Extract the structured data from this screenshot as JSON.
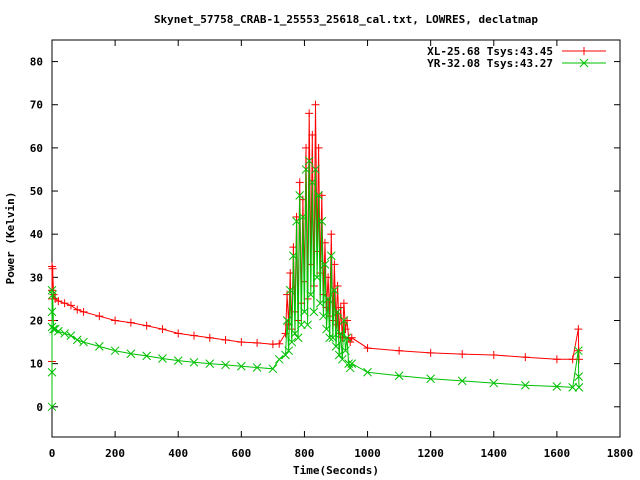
{
  "chart_data": {
    "type": "line",
    "title": "Skynet_57758_CRAB-1_25553_25618_cal.txt, LOWRES, declatmap",
    "xlabel": "Time(Seconds)",
    "ylabel": "Power (Kelvin)",
    "xlim": [
      0,
      1800
    ],
    "ylim": [
      -7,
      85
    ],
    "x_ticks": [
      "0",
      "200",
      "400",
      "600",
      "800",
      "1000",
      "1200",
      "1400",
      "1600",
      "1800"
    ],
    "y_ticks": [
      "0",
      "10",
      "20",
      "30",
      "40",
      "50",
      "60",
      "70",
      "80"
    ],
    "grid": false,
    "legend_position": "top-right",
    "series": [
      {
        "name": "XL-25.68 Tsys:43.45",
        "color": "#ff0000",
        "marker": "plus",
        "x": [
          0,
          0,
          0,
          0,
          0,
          2,
          5,
          10,
          20,
          40,
          60,
          80,
          100,
          150,
          200,
          250,
          300,
          350,
          400,
          450,
          500,
          550,
          600,
          650,
          700,
          720,
          740,
          745,
          750,
          755,
          760,
          765,
          770,
          775,
          780,
          785,
          790,
          795,
          800,
          805,
          810,
          815,
          820,
          825,
          830,
          835,
          840,
          845,
          850,
          855,
          860,
          865,
          870,
          875,
          880,
          885,
          890,
          895,
          900,
          905,
          910,
          915,
          920,
          925,
          930,
          935,
          940,
          945,
          950,
          1000,
          1100,
          1200,
          1300,
          1400,
          1500,
          1600,
          1650,
          1668,
          1669,
          1670
        ],
        "y": [
          10.5,
          32.5,
          27,
          20,
          25,
          32,
          26,
          25,
          24.5,
          24,
          23.5,
          22.5,
          22,
          21,
          20,
          19.5,
          18.8,
          18,
          17,
          16.5,
          16,
          15.5,
          15,
          14.8,
          14.5,
          14.6,
          17,
          26,
          19,
          31,
          18,
          37,
          22,
          44,
          20,
          52,
          24,
          48,
          29,
          60,
          25,
          68,
          33,
          63,
          28,
          70,
          36,
          60,
          31,
          49,
          26,
          38,
          23,
          30,
          21,
          40,
          20,
          33,
          19,
          28,
          17,
          23,
          16,
          24,
          18,
          20,
          16,
          15,
          16,
          13.6,
          13,
          12.5,
          12.2,
          12,
          11.5,
          11,
          11,
          18,
          13,
          11
        ]
      },
      {
        "name": "YR-32.08 Tsys:43.27",
        "color": "#00c000",
        "marker": "x",
        "x": [
          0,
          0,
          0,
          0,
          0,
          2,
          5,
          10,
          20,
          40,
          60,
          80,
          100,
          150,
          200,
          250,
          300,
          350,
          400,
          450,
          500,
          550,
          600,
          650,
          700,
          720,
          740,
          745,
          750,
          755,
          760,
          765,
          770,
          775,
          780,
          785,
          790,
          795,
          800,
          805,
          810,
          815,
          820,
          825,
          830,
          835,
          840,
          845,
          850,
          855,
          860,
          865,
          870,
          875,
          880,
          885,
          890,
          895,
          900,
          905,
          910,
          915,
          920,
          925,
          930,
          935,
          940,
          945,
          950,
          1000,
          1100,
          1200,
          1300,
          1400,
          1500,
          1600,
          1650,
          1668,
          1669,
          1670
        ],
        "y": [
          0,
          8,
          22,
          27,
          18.5,
          26,
          18,
          18,
          17.5,
          17,
          16.5,
          15.5,
          15,
          14,
          13,
          12.3,
          11.8,
          11.2,
          10.7,
          10.3,
          10,
          9.7,
          9.4,
          9.1,
          8.8,
          11,
          12,
          20,
          13,
          27,
          15,
          35,
          17,
          43,
          16,
          49,
          19,
          44,
          22,
          55,
          19,
          57,
          26,
          52,
          22,
          55,
          30,
          49,
          24,
          43,
          21,
          33,
          18,
          25,
          16,
          35,
          16,
          27,
          14,
          22,
          12,
          17,
          11,
          20,
          13,
          16,
          10,
          9,
          10,
          8,
          7.2,
          6.5,
          6,
          5.5,
          5,
          4.7,
          4.5,
          13,
          7,
          4.5
        ]
      }
    ]
  }
}
